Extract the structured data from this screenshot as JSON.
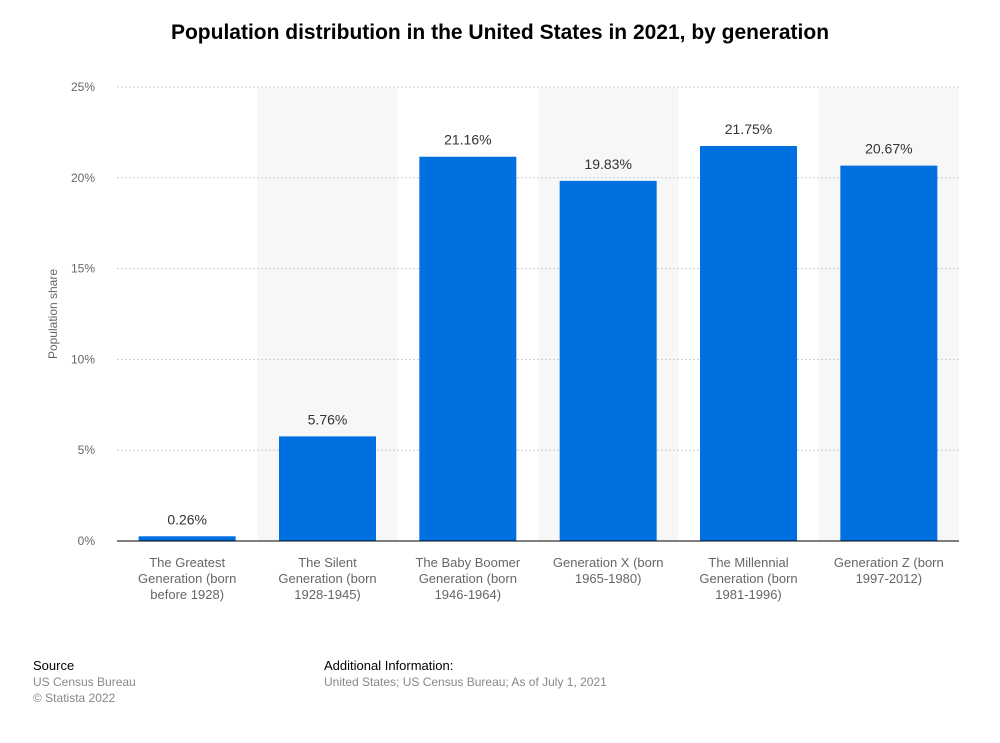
{
  "colors": {
    "bar": "#0070e0",
    "band": "#f7f7f7",
    "grid": "#cccccc",
    "axis": "#000000"
  },
  "chart_data": {
    "type": "bar",
    "title": "Population distribution in the United States in 2021, by generation",
    "ylabel": "Population share",
    "xlabel": "",
    "ylim": [
      0,
      25
    ],
    "yticks": [
      0,
      5,
      10,
      15,
      20,
      25
    ],
    "ytick_labels": [
      "0%",
      "5%",
      "10%",
      "15%",
      "20%",
      "25%"
    ],
    "grid": true,
    "categories": [
      "The Greatest Generation (born before 1928)",
      "The Silent Generation (born 1928-1945)",
      "The Baby Boomer Generation (born 1946-1964)",
      "Generation X (born 1965-1980)",
      "The Millennial Generation (born 1981-1996)",
      "Generation Z (born 1997-2012)"
    ],
    "category_lines": [
      [
        "The Greatest",
        "Generation (born",
        "before 1928)"
      ],
      [
        "The Silent",
        "Generation (born",
        "1928-1945)"
      ],
      [
        "The Baby Boomer",
        "Generation (born",
        "1946-1964)"
      ],
      [
        "Generation X (born",
        "1965-1980)"
      ],
      [
        "The Millennial",
        "Generation (born",
        "1981-1996)"
      ],
      [
        "Generation Z (born",
        "1997-2012)"
      ]
    ],
    "values": [
      0.26,
      5.76,
      21.16,
      19.83,
      21.75,
      20.67
    ],
    "data_labels": [
      "0.26%",
      "5.76%",
      "21.16%",
      "19.83%",
      "21.75%",
      "20.67%"
    ]
  },
  "footer": {
    "source_heading": "Source",
    "source_line1": "US Census Bureau",
    "source_line2": "© Statista 2022",
    "info_heading": "Additional Information:",
    "info_text": "United States; US Census Bureau; As of July 1, 2021"
  }
}
